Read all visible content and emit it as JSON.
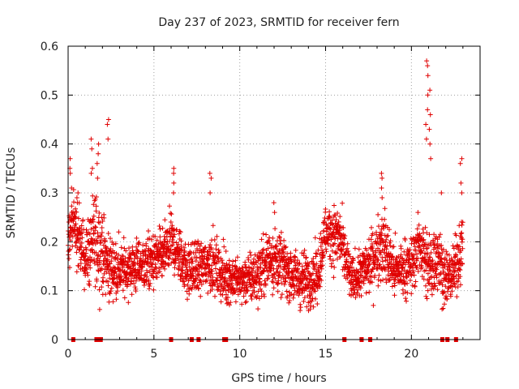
{
  "chart_data": {
    "type": "scatter",
    "title": "Day 237 of 2023, SRMTID for receiver fern",
    "xlabel": "GPS time / hours",
    "ylabel": "SRMTID / TECUs",
    "xlim": [
      0,
      24
    ],
    "ylim": [
      0,
      0.6
    ],
    "xticks": [
      0,
      5,
      10,
      15,
      20
    ],
    "yticks": [
      0,
      0.1,
      0.2,
      0.3,
      0.4,
      0.5,
      0.6
    ],
    "xtick_labels": [
      "0",
      "5",
      "10",
      "15",
      "20"
    ],
    "ytick_labels": [
      "0",
      "0.1",
      "0.2",
      "0.3",
      "0.4",
      "0.5",
      "0.6"
    ],
    "grid": true,
    "marker": "+",
    "color": "#e00000",
    "zero_markers_x": [
      0.3,
      1.65,
      1.8,
      1.9,
      6.0,
      7.2,
      7.6,
      9.1,
      9.2,
      16.1,
      17.1,
      17.6,
      21.8,
      22.1,
      22.6
    ],
    "envelope": {
      "x": [
        0.0,
        0.3,
        0.5,
        1.0,
        1.5,
        1.8,
        2.3,
        3.0,
        4.0,
        5.0,
        5.5,
        6.0,
        7.0,
        7.8,
        8.3,
        9.0,
        10.0,
        11.0,
        11.8,
        12.5,
        13.5,
        14.5,
        15.0,
        15.8,
        16.5,
        17.5,
        18.3,
        19.0,
        20.0,
        20.5,
        21.0,
        21.5,
        22.0,
        22.5,
        23.0
      ],
      "center": [
        0.22,
        0.25,
        0.21,
        0.17,
        0.2,
        0.2,
        0.15,
        0.14,
        0.15,
        0.16,
        0.17,
        0.2,
        0.14,
        0.15,
        0.16,
        0.13,
        0.12,
        0.13,
        0.17,
        0.15,
        0.12,
        0.13,
        0.22,
        0.21,
        0.12,
        0.15,
        0.2,
        0.14,
        0.15,
        0.2,
        0.14,
        0.18,
        0.12,
        0.14,
        0.2
      ],
      "spread": [
        0.05,
        0.06,
        0.06,
        0.06,
        0.08,
        0.08,
        0.06,
        0.05,
        0.05,
        0.05,
        0.05,
        0.05,
        0.05,
        0.05,
        0.05,
        0.05,
        0.04,
        0.05,
        0.06,
        0.05,
        0.05,
        0.05,
        0.05,
        0.06,
        0.04,
        0.05,
        0.07,
        0.05,
        0.05,
        0.06,
        0.07,
        0.07,
        0.05,
        0.05,
        0.06
      ]
    },
    "spikes": [
      {
        "x": 0.15,
        "values": [
          0.37,
          0.35,
          0.34,
          0.31
        ]
      },
      {
        "x": 0.55,
        "values": [
          0.3,
          0.29,
          0.28
        ]
      },
      {
        "x": 1.4,
        "values": [
          0.41,
          0.39,
          0.35,
          0.34
        ]
      },
      {
        "x": 1.75,
        "values": [
          0.4,
          0.38,
          0.36,
          0.33
        ]
      },
      {
        "x": 2.3,
        "values": [
          0.45,
          0.44,
          0.41
        ]
      },
      {
        "x": 6.1,
        "values": [
          0.35,
          0.34,
          0.32,
          0.3
        ]
      },
      {
        "x": 8.3,
        "values": [
          0.34,
          0.33,
          0.3
        ]
      },
      {
        "x": 12.0,
        "values": [
          0.28,
          0.26
        ]
      },
      {
        "x": 18.3,
        "values": [
          0.34,
          0.33,
          0.31,
          0.29
        ]
      },
      {
        "x": 20.9,
        "values": [
          0.57,
          0.56,
          0.54,
          0.5,
          0.47,
          0.44,
          0.41
        ]
      },
      {
        "x": 21.1,
        "values": [
          0.51,
          0.46,
          0.43,
          0.4,
          0.37
        ]
      },
      {
        "x": 21.7,
        "values": [
          0.3
        ]
      },
      {
        "x": 22.9,
        "values": [
          0.37,
          0.36,
          0.32,
          0.3
        ]
      }
    ]
  }
}
